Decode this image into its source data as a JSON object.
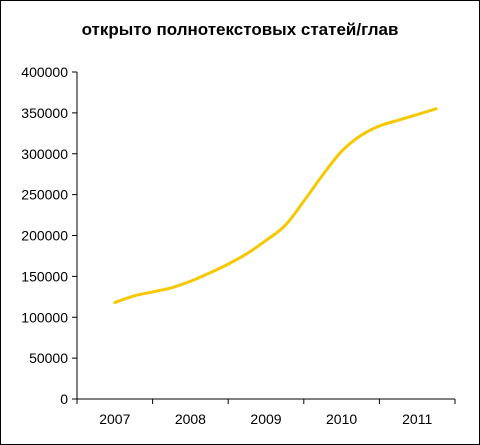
{
  "chart_data": {
    "type": "line",
    "title": "открыто полнотекстовых статей/глав",
    "xlabel": "",
    "ylabel": "",
    "categories": [
      "2007",
      "2008",
      "2009",
      "2010",
      "2011"
    ],
    "ylim": [
      0,
      400000
    ],
    "yticks": [
      "0",
      "50000",
      "100000",
      "150000",
      "200000",
      "250000",
      "300000",
      "350000",
      "400000"
    ],
    "grid": false,
    "legend": "none",
    "series": [
      {
        "color": "#f5c800",
        "points": [
          {
            "x": 2007.0,
            "y": 118000
          },
          {
            "x": 2007.25,
            "y": 126000
          },
          {
            "x": 2007.5,
            "y": 131000
          },
          {
            "x": 2007.75,
            "y": 136000
          },
          {
            "x": 2008.0,
            "y": 144000
          },
          {
            "x": 2008.25,
            "y": 154000
          },
          {
            "x": 2008.5,
            "y": 165000
          },
          {
            "x": 2008.75,
            "y": 178000
          },
          {
            "x": 2009.0,
            "y": 194000
          },
          {
            "x": 2009.25,
            "y": 212000
          },
          {
            "x": 2009.5,
            "y": 242000
          },
          {
            "x": 2009.75,
            "y": 274000
          },
          {
            "x": 2010.0,
            "y": 303000
          },
          {
            "x": 2010.25,
            "y": 322000
          },
          {
            "x": 2010.5,
            "y": 334000
          },
          {
            "x": 2010.75,
            "y": 341000
          },
          {
            "x": 2011.0,
            "y": 348000
          },
          {
            "x": 2011.25,
            "y": 355000
          }
        ]
      }
    ]
  }
}
